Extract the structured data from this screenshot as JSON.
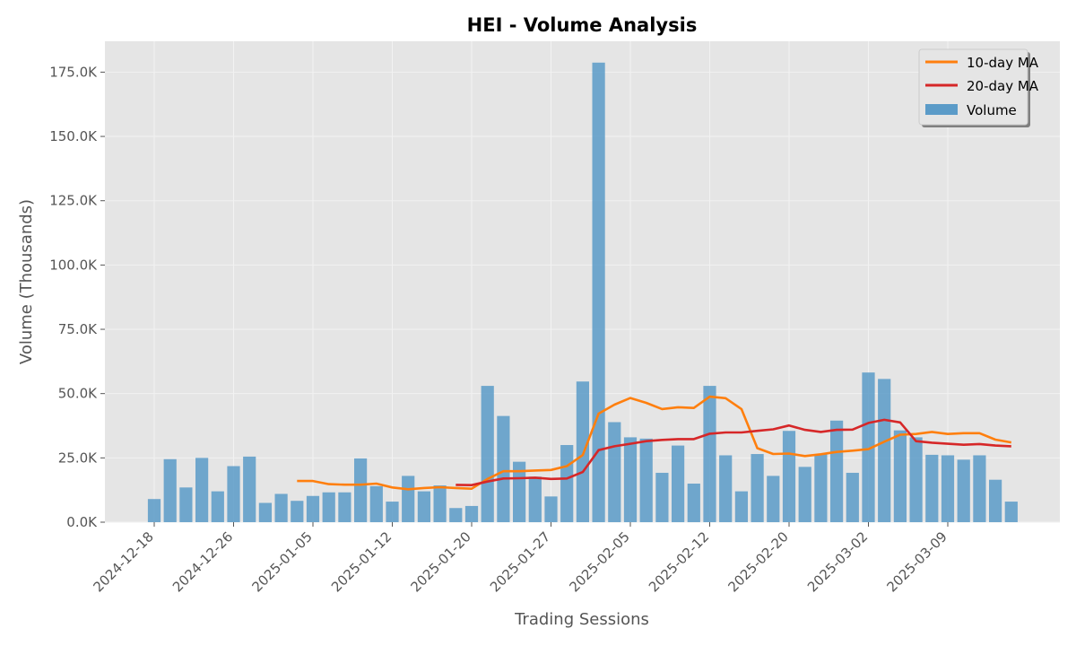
{
  "chart_data": {
    "type": "bar",
    "title": "HEI - Volume Analysis",
    "xlabel": "Trading Sessions",
    "ylabel": "Volume (Thousands)",
    "ylim": [
      0,
      187000
    ],
    "grid": true,
    "legend_position": "top-right",
    "x_tick_labels": [
      "2024-12-18",
      "2024-12-26",
      "2025-01-05",
      "2025-01-12",
      "2025-01-20",
      "2025-01-27",
      "2025-02-05",
      "2025-02-12",
      "2025-02-20",
      "2025-03-02",
      "2025-03-09"
    ],
    "x_tick_indices": [
      0,
      5,
      10,
      15,
      20,
      25,
      30,
      35,
      40,
      45,
      50
    ],
    "y_ticks": [
      0,
      25000,
      50000,
      75000,
      100000,
      125000,
      150000,
      175000
    ],
    "y_tick_labels": [
      "0.0K",
      "25.0K",
      "50.0K",
      "75.0K",
      "100.0K",
      "125.0K",
      "150.0K",
      "175.0K"
    ],
    "series": [
      {
        "name": "Volume",
        "kind": "bar",
        "color": "#5b9bc8",
        "values": [
          9000,
          24500,
          13500,
          25000,
          12000,
          21800,
          25500,
          7500,
          11000,
          8300,
          10200,
          11600,
          11600,
          24800,
          14000,
          8000,
          18000,
          12000,
          14300,
          5500,
          6300,
          53000,
          41300,
          23500,
          17700,
          10000,
          30000,
          54700,
          178700,
          38900,
          33000,
          32500,
          19200,
          29800,
          15000,
          53000,
          26000,
          12000,
          26500,
          18000,
          35500,
          21500,
          26500,
          39500,
          19200,
          58200,
          55700,
          35700,
          33000,
          26200,
          26000,
          24300,
          26000,
          16500,
          8000
        ]
      },
      {
        "name": "10-day MA",
        "kind": "line",
        "color": "#ff7f0e",
        "values": [
          null,
          null,
          null,
          null,
          null,
          null,
          null,
          null,
          null,
          16000,
          16000,
          14800,
          14600,
          14600,
          15000,
          13500,
          12800,
          13300,
          13600,
          13300,
          13000,
          16800,
          19800,
          19800,
          20100,
          20300,
          21800,
          26100,
          42200,
          45700,
          48300,
          46400,
          44000,
          44700,
          44400,
          48800,
          48200,
          44000,
          28800,
          26500,
          26700,
          25700,
          26400,
          27300,
          27800,
          28400,
          31300,
          34000,
          34300,
          35100,
          34300,
          34600,
          34600,
          32100,
          31000
        ]
      },
      {
        "name": "20-day MA",
        "kind": "line",
        "color": "#d62728",
        "values": [
          null,
          null,
          null,
          null,
          null,
          null,
          null,
          null,
          null,
          null,
          null,
          null,
          null,
          null,
          null,
          null,
          null,
          null,
          null,
          14500,
          14400,
          15800,
          17000,
          17100,
          17300,
          16800,
          17000,
          19500,
          28000,
          29500,
          30500,
          31500,
          32000,
          32300,
          32300,
          34400,
          34900,
          34900,
          35500,
          36100,
          37600,
          35900,
          35100,
          35900,
          36000,
          38600,
          39800,
          38800,
          31500,
          30900,
          30500,
          30100,
          30400,
          29800,
          29500
        ]
      }
    ]
  }
}
